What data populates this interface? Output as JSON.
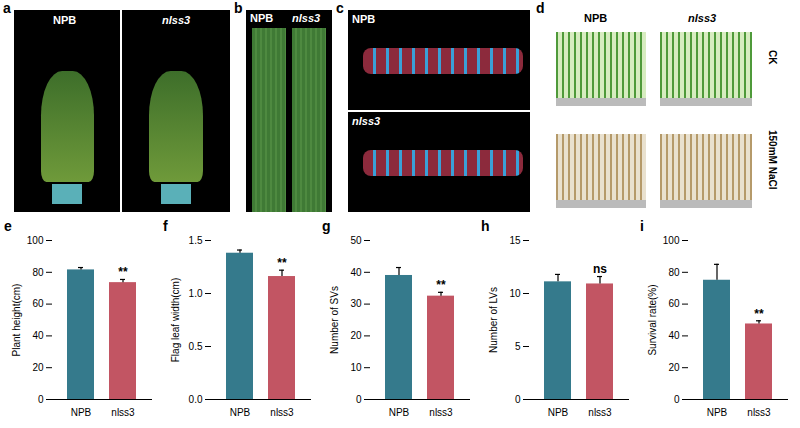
{
  "image_panels": [
    {
      "panel": "a",
      "labels": [
        "NPB",
        "nlss3"
      ]
    },
    {
      "panel": "b",
      "labels": [
        "NPB",
        "nlss3"
      ]
    },
    {
      "panel": "c",
      "labels": [
        "NPB",
        "nlss3"
      ]
    },
    {
      "panel": "d",
      "labels": [
        "NPB",
        "nlss3"
      ],
      "conditions": [
        "CK",
        "150mM NaCl"
      ]
    }
  ],
  "chart_data": [
    {
      "type": "bar",
      "panel": "e",
      "ylabel": "Plant height(cm)",
      "categories": [
        "NPB",
        "nlss3"
      ],
      "values": [
        81.5,
        73.5
      ],
      "errors": [
        1.5,
        2.0
      ],
      "colors": [
        "#357a8c",
        "#c25563"
      ],
      "annotations": [
        null,
        "**"
      ],
      "ylim": [
        0,
        100
      ],
      "yticks": [
        0,
        20,
        40,
        60,
        80,
        100
      ]
    },
    {
      "type": "bar",
      "panel": "f",
      "ylabel": "Flag leaf width(cm)",
      "categories": [
        "NPB",
        "nlss3"
      ],
      "values": [
        1.38,
        1.16
      ],
      "errors": [
        0.03,
        0.06
      ],
      "colors": [
        "#357a8c",
        "#c25563"
      ],
      "annotations": [
        null,
        "**"
      ],
      "ylim": [
        0,
        1.5
      ],
      "yticks": [
        {
          "value": 0,
          "label": "0.0"
        },
        {
          "value": 0.5,
          "label": "0.5"
        },
        {
          "value": 1,
          "label": "1.0"
        },
        {
          "value": 1.5,
          "label": "1.5"
        }
      ]
    },
    {
      "type": "bar",
      "panel": "g",
      "ylabel": "Number of SVs",
      "categories": [
        "NPB",
        "nlss3"
      ],
      "values": [
        39,
        32.5
      ],
      "errors": [
        2.5,
        1.2
      ],
      "colors": [
        "#357a8c",
        "#c25563"
      ],
      "annotations": [
        null,
        "**"
      ],
      "ylim": [
        0,
        50
      ],
      "yticks": [
        0,
        10,
        20,
        30,
        40,
        50
      ]
    },
    {
      "type": "bar",
      "panel": "h",
      "ylabel": "Number of LVs",
      "categories": [
        "NPB",
        "nlss3"
      ],
      "values": [
        11.1,
        10.9
      ],
      "errors": [
        0.7,
        0.7
      ],
      "colors": [
        "#357a8c",
        "#c25563"
      ],
      "annotations": [
        null,
        "ns"
      ],
      "ylim": [
        0,
        15
      ],
      "yticks": [
        0,
        5,
        10,
        15
      ]
    },
    {
      "type": "bar",
      "panel": "i",
      "ylabel": "Survival rate(%)",
      "categories": [
        "NPB",
        "nlss3"
      ],
      "values": [
        75,
        47.5
      ],
      "errors": [
        10,
        2
      ],
      "colors": [
        "#357a8c",
        "#c25563"
      ],
      "annotations": [
        null,
        "**"
      ],
      "ylim": [
        0,
        100
      ],
      "yticks": [
        0,
        20,
        40,
        60,
        80,
        100
      ]
    }
  ]
}
